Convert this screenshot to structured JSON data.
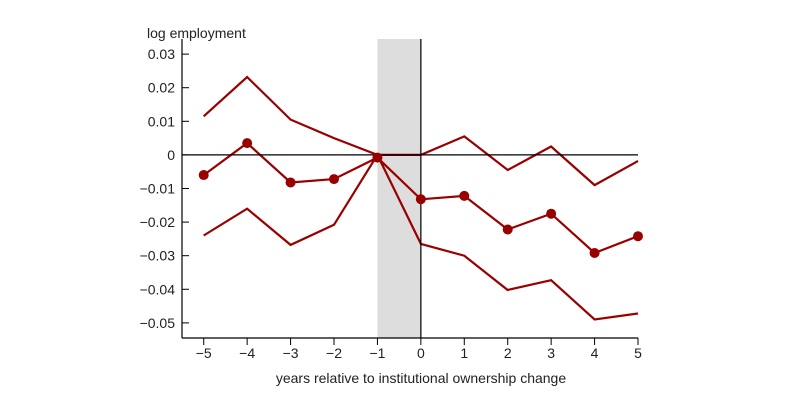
{
  "chart_data": {
    "type": "line",
    "ylabel": "log employment",
    "xlabel": "years relative to institutional ownership change",
    "x": [
      -5,
      -4,
      -3,
      -2,
      -1,
      0,
      1,
      2,
      3,
      4,
      5
    ],
    "x_tick_labels": [
      "−5",
      "−4",
      "−3",
      "−2",
      "−1",
      "0",
      "1",
      "2",
      "3",
      "4",
      "5"
    ],
    "y_ticks": [
      0.03,
      0.02,
      0.01,
      0,
      -0.01,
      -0.02,
      -0.03,
      -0.04,
      -0.05
    ],
    "y_tick_labels": [
      "0.03",
      "0.02",
      "0.01",
      "0",
      "−0.01",
      "−0.02",
      "−0.03",
      "−0.04",
      "−0.05"
    ],
    "xlim": [
      -5.5,
      5
    ],
    "ylim": [
      -0.0545,
      0.0345
    ],
    "shaded_region": [
      -1,
      0
    ],
    "shade_color": "#dddddd",
    "line_color": "#990000",
    "series": [
      {
        "role": "estimate",
        "markers": true,
        "values": [
          -0.006,
          0.0035,
          -0.0082,
          -0.0072,
          -0.0008,
          -0.0132,
          -0.0122,
          -0.0222,
          -0.0175,
          -0.0292,
          -0.0242
        ]
      },
      {
        "role": "upper",
        "markers": false,
        "values": [
          0.0115,
          0.0232,
          0.0105,
          0.005,
          0.0,
          0.0,
          0.0055,
          -0.0045,
          0.0025,
          -0.009,
          -0.0018
        ]
      },
      {
        "role": "lower",
        "markers": false,
        "values": [
          -0.024,
          -0.016,
          -0.0268,
          -0.0208,
          0.0,
          -0.0265,
          -0.03,
          -0.0402,
          -0.0373,
          -0.049,
          -0.0472
        ]
      }
    ]
  }
}
